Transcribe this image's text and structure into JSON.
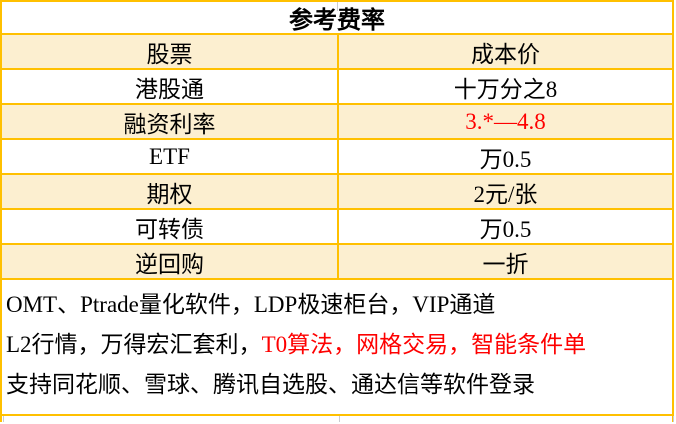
{
  "colors": {
    "border_gold": "#FFC000",
    "row_cream": "#FCEFD0",
    "red": "#FE0000",
    "text": "#000000"
  },
  "table": {
    "title": "参考费率",
    "rows": [
      {
        "label": "股票",
        "value": "成本价",
        "value_color": "#000000"
      },
      {
        "label": "港股通",
        "value": "十万分之8",
        "value_color": "#000000"
      },
      {
        "label": "融资利率",
        "value": "3.*—4.8",
        "value_color": "#FE0000"
      },
      {
        "label": "ETF",
        "value": "万0.5",
        "value_color": "#000000"
      },
      {
        "label": "期权",
        "value": "2元/张",
        "value_color": "#000000"
      },
      {
        "label": "可转债",
        "value": "万0.5",
        "value_color": "#000000"
      },
      {
        "label": "逆回购",
        "value": "一折",
        "value_color": "#000000"
      }
    ]
  },
  "footer": {
    "line1": "OMT、Ptrade量化软件，LDP极速柜台，VIP通道",
    "line2_black": "L2行情，万得宏汇套利，",
    "line2_red": "T0算法，网格交易，智能条件单",
    "line3": "支持同花顺、雪球、腾讯自选股、通达信等软件登录"
  }
}
